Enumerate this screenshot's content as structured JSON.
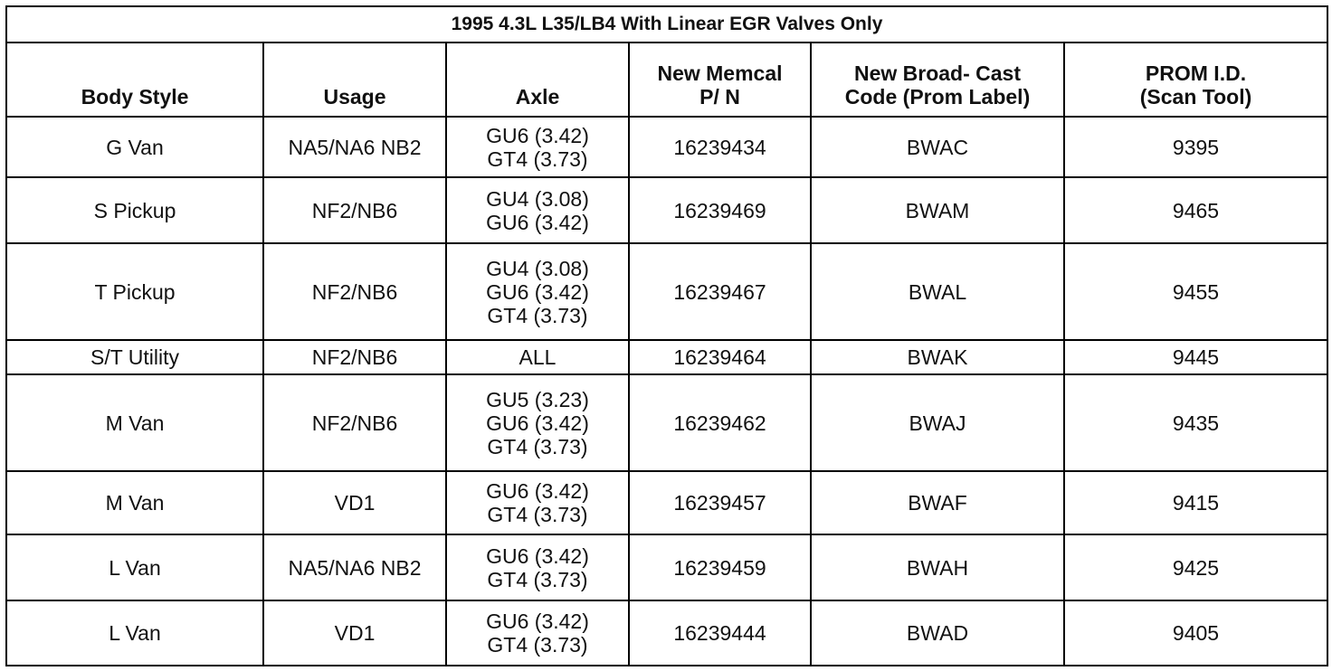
{
  "table": {
    "title": "1995 4.3L L35/LB4 With Linear EGR Valves Only",
    "header": [
      [
        "Body Style"
      ],
      [
        "Usage"
      ],
      [
        "Axle"
      ],
      [
        "New Memcal",
        "P/ N"
      ],
      [
        "New Broad- Cast",
        "Code (Prom Label)"
      ],
      [
        "PROM I.D.",
        "(Scan Tool)"
      ]
    ],
    "rows": [
      [
        "G Van",
        "NA5/NA6 NB2",
        [
          "GU6 (3.42)",
          "GT4 (3.73)"
        ],
        "16239434",
        "BWAC",
        "9395"
      ],
      [
        "S Pickup",
        "NF2/NB6",
        [
          "GU4 (3.08)",
          "GU6 (3.42)"
        ],
        "16239469",
        "BWAM",
        "9465"
      ],
      [
        "T Pickup",
        "NF2/NB6",
        [
          "GU4 (3.08)",
          "GU6 (3.42)",
          "GT4 (3.73)"
        ],
        "16239467",
        "BWAL",
        "9455"
      ],
      [
        "S/T Utility",
        "NF2/NB6",
        [
          "ALL"
        ],
        "16239464",
        "BWAK",
        "9445"
      ],
      [
        "M Van",
        "NF2/NB6",
        [
          "GU5 (3.23)",
          "GU6 (3.42)",
          "GT4 (3.73)"
        ],
        "16239462",
        "BWAJ",
        "9435"
      ],
      [
        "M Van",
        "VD1",
        [
          "GU6 (3.42)",
          "GT4 (3.73)"
        ],
        "16239457",
        "BWAF",
        "9415"
      ],
      [
        "L Van",
        "NA5/NA6 NB2",
        [
          "GU6 (3.42)",
          "GT4 (3.73)"
        ],
        "16239459",
        "BWAH",
        "9425"
      ],
      [
        "L Van",
        "VD1",
        [
          "GU6 (3.42)",
          "GT4 (3.73)"
        ],
        "16239444",
        "BWAD",
        "9405"
      ]
    ]
  }
}
